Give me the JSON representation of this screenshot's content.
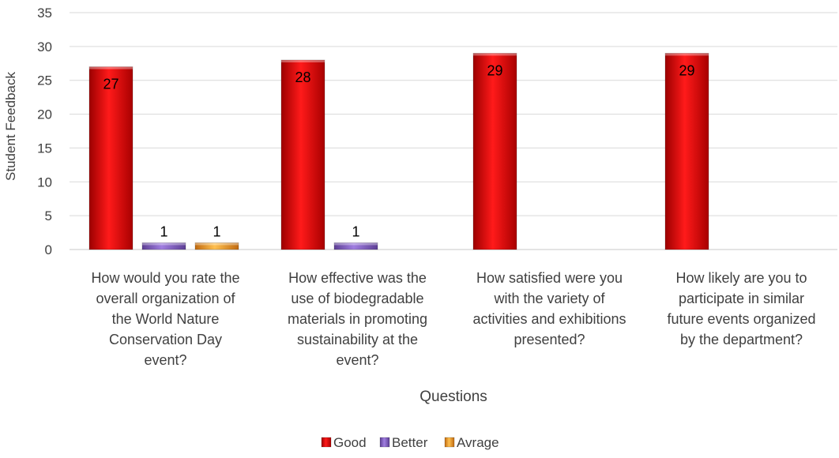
{
  "chart_data": {
    "type": "bar",
    "categories": [
      [
        "How would you rate the",
        "overall organization of",
        "the World Nature",
        "Conservation Day",
        "event?"
      ],
      [
        "How effective was the",
        "use of biodegradable",
        "materials in promoting",
        "sustainability at the",
        "event?"
      ],
      [
        "How satisfied were you",
        "with the variety of",
        "activities and exhibitions",
        "presented?"
      ],
      [
        "How likely are you to",
        "participate in similar",
        "future events organized",
        "by the department?"
      ]
    ],
    "series": [
      {
        "name": "Good",
        "values": [
          27,
          28,
          29,
          29
        ],
        "color": "#e00000"
      },
      {
        "name": "Better",
        "values": [
          1,
          1,
          null,
          null
        ],
        "color": "#8e6bc9"
      },
      {
        "name": "Avrage",
        "values": [
          1,
          null,
          null,
          null
        ],
        "color": "#f0a030"
      }
    ],
    "xlabel": "Questions",
    "ylabel": "Student Feedback",
    "ylim": [
      0,
      35
    ],
    "yticks": [
      0,
      5,
      10,
      15,
      20,
      25,
      30,
      35
    ],
    "grid": true,
    "legend_position": "bottom"
  }
}
